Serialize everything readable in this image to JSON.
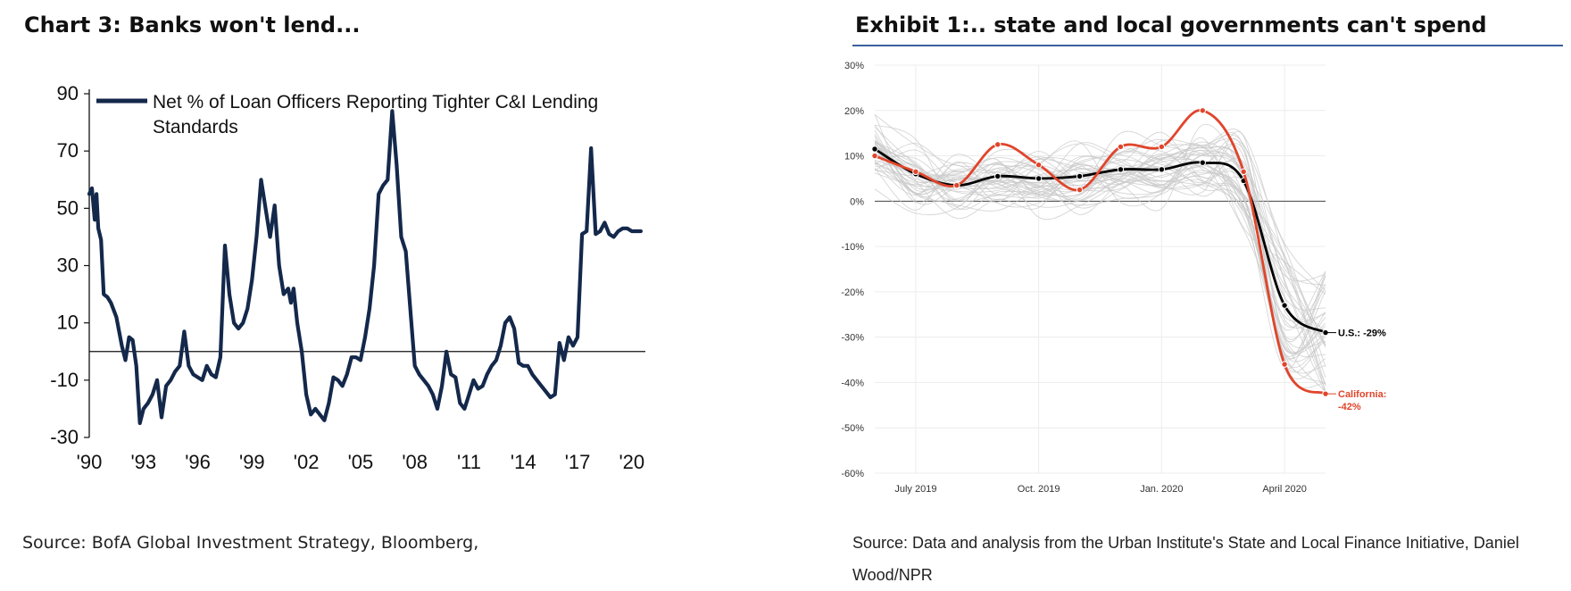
{
  "chart_data": [
    {
      "type": "line",
      "title": "Chart 3: Banks won't lend...",
      "source": "Source: BofA Global Investment Strategy, Bloomberg,",
      "color": "#14284b",
      "ylim": [
        -30,
        90
      ],
      "yticks": [
        "90",
        "70",
        "50",
        "30",
        "10",
        "-10",
        "-30"
      ],
      "ytick_values": [
        90,
        70,
        50,
        30,
        10,
        -10,
        -30
      ],
      "xlim": [
        1990,
        2020.75
      ],
      "xticks": [
        "'90",
        "'93",
        "'96",
        "'99",
        "'02",
        "'05",
        "'08",
        "'11",
        "'14",
        "'17",
        "'20"
      ],
      "xtick_values": [
        1990,
        1993,
        1996,
        1999,
        2002,
        2005,
        2008,
        2011,
        2014,
        2017,
        2020
      ],
      "series": [
        {
          "name": "Net % of Loan Officers Reporting Tighter C&I Lending Standards",
          "x": [
            1990.0,
            1990.15,
            1990.3,
            1990.4,
            1990.5,
            1990.65,
            1990.8,
            1991.0,
            1991.2,
            1991.5,
            1991.8,
            1992.0,
            1992.2,
            1992.4,
            1992.6,
            1992.8,
            1993.0,
            1993.25,
            1993.5,
            1993.75,
            1994.0,
            1994.25,
            1994.5,
            1994.75,
            1995.0,
            1995.25,
            1995.5,
            1995.75,
            1996.0,
            1996.25,
            1996.5,
            1996.75,
            1997.0,
            1997.25,
            1997.5,
            1997.75,
            1998.0,
            1998.25,
            1998.5,
            1998.75,
            1999.0,
            1999.25,
            1999.5,
            1999.75,
            2000.0,
            2000.25,
            2000.5,
            2000.75,
            2001.0,
            2001.15,
            2001.3,
            2001.5,
            2001.75,
            2002.0,
            2002.25,
            2002.5,
            2002.75,
            2003.0,
            2003.25,
            2003.5,
            2003.75,
            2004.0,
            2004.25,
            2004.5,
            2004.75,
            2005.0,
            2005.25,
            2005.5,
            2005.75,
            2006.0,
            2006.25,
            2006.5,
            2006.75,
            2007.0,
            2007.25,
            2007.5,
            2007.75,
            2008.0,
            2008.25,
            2008.5,
            2008.75,
            2009.0,
            2009.25,
            2009.5,
            2009.75,
            2010.0,
            2010.25,
            2010.5,
            2010.75,
            2011.0,
            2011.25,
            2011.5,
            2011.75,
            2012.0,
            2012.25,
            2012.5,
            2012.75,
            2013.0,
            2013.25,
            2013.5,
            2013.75,
            2014.0,
            2014.25,
            2014.5,
            2014.75,
            2015.0,
            2015.25,
            2015.5,
            2015.75,
            2016.0,
            2016.25,
            2016.5,
            2016.75,
            2017.0,
            2017.25,
            2017.5,
            2017.75,
            2018.0,
            2018.25,
            2018.5,
            2018.75,
            2019.0,
            2019.25,
            2019.5,
            2019.75,
            2020.0,
            2020.25,
            2020.5
          ],
          "y": [
            55,
            57,
            46,
            55,
            43,
            39,
            20,
            19,
            17,
            12,
            2,
            -3,
            5,
            4,
            -5,
            -25,
            -20,
            -18,
            -15,
            -10,
            -23,
            -12,
            -10,
            -7,
            -5,
            7,
            -5,
            -8,
            -9,
            -10,
            -5,
            -8,
            -9,
            -2,
            37,
            20,
            10,
            8,
            10,
            15,
            25,
            40,
            60,
            50,
            40,
            51,
            30,
            20,
            22,
            17,
            22,
            10,
            0,
            -15,
            -22,
            -20,
            -22,
            -24,
            -18,
            -9,
            -10,
            -12,
            -8,
            -2,
            -2,
            -3,
            5,
            15,
            30,
            55,
            58,
            60,
            84,
            65,
            40,
            35,
            15,
            -5,
            -8,
            -10,
            -12,
            -15,
            -20,
            -12,
            0,
            -8,
            -9,
            -18,
            -20,
            -15,
            -10,
            -13,
            -12,
            -8,
            -5,
            -3,
            2,
            10,
            12,
            8,
            -4,
            -5,
            -5,
            -8,
            -10,
            -12,
            -14,
            -16,
            -15,
            3,
            -3,
            5,
            2,
            5,
            41,
            42,
            71,
            41,
            42,
            45,
            41,
            40,
            42,
            43,
            43,
            42,
            42,
            42
          ],
          "values_note": ""
        }
      ],
      "legend": "top-left",
      "reference_line": 0
    },
    {
      "type": "line",
      "title": "Exhibit 1:.. state and local governments can't spend",
      "source": "Source: Data and analysis from the Urban Institute's State and Local Finance Initiative, Daniel Wood/NPR",
      "ylim": [
        -60,
        30
      ],
      "yticks": [
        "30%",
        "20%",
        "10%",
        "0%",
        "-10%",
        "-20%",
        "-30%",
        "-40%",
        "-50%",
        "-60%"
      ],
      "ytick_values": [
        30,
        20,
        10,
        0,
        -10,
        -20,
        -30,
        -40,
        -50,
        -60
      ],
      "xticks": [
        "July 2019",
        "Oct. 2019",
        "Jan. 2020",
        "April 2020"
      ],
      "x_categories": [
        "2019-06",
        "2019-07",
        "2019-08",
        "2019-09",
        "2019-10",
        "2019-11",
        "2019-12",
        "2020-01",
        "2020-02",
        "2020-03",
        "2020-04",
        "2020-05"
      ],
      "xtick_indices": [
        1,
        4,
        7,
        10
      ],
      "series": [
        {
          "name": "",
          "label": "U.S.: -29%",
          "color": "#000000",
          "values": [
            11.5,
            6,
            3.5,
            5.5,
            5,
            5.5,
            7,
            7,
            8.5,
            4.5,
            -23,
            -29
          ]
        },
        {
          "name": "",
          "label_lines": [
            "California:",
            "-42%"
          ],
          "color": "#e0452b",
          "values": [
            10,
            6.5,
            3.5,
            12.5,
            8,
            2.5,
            12,
            12,
            20,
            6.5,
            -36,
            -42.5
          ]
        }
      ],
      "background_series_color": "#c8c8c8",
      "grid": true,
      "reference_line": 0
    }
  ]
}
